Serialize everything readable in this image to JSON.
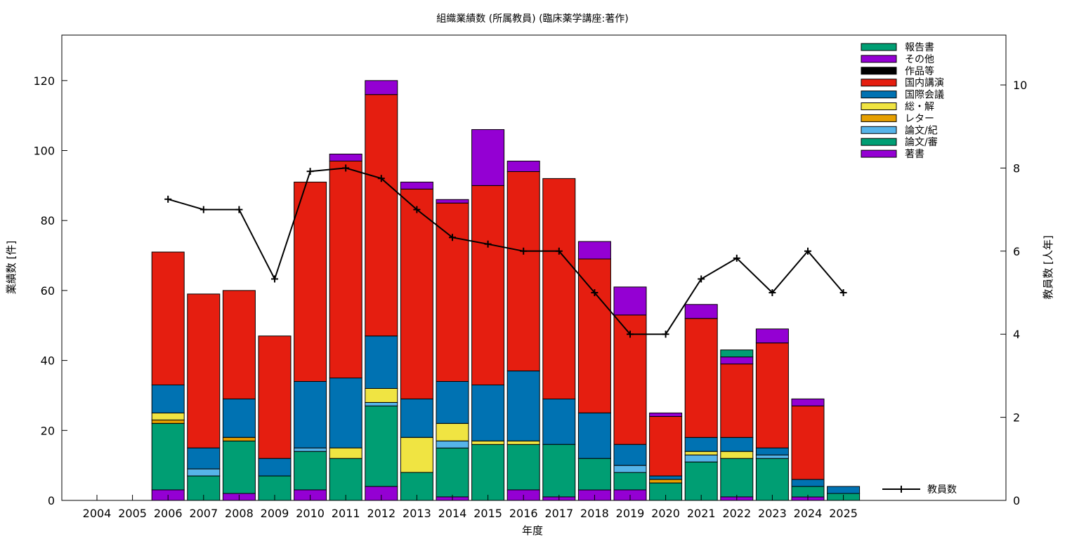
{
  "chart_data": {
    "type": "bar",
    "stacked": true,
    "title": "組織業績数 (所属教員) (臨床薬学講座:著作)",
    "xlabel": "年度",
    "ylabel": "業績数 [件]",
    "y2label": "教員数 [人年]",
    "ylim": [
      0,
      133
    ],
    "y2lim": [
      0,
      11.2
    ],
    "yticks": [
      0,
      20,
      40,
      60,
      80,
      100,
      120
    ],
    "y2ticks": [
      0,
      2,
      4,
      6,
      8,
      10
    ],
    "grid": false,
    "legend_position": "top-right",
    "categories": [
      "2004",
      "2005",
      "2006",
      "2007",
      "2008",
      "2009",
      "2010",
      "2011",
      "2012",
      "2013",
      "2014",
      "2015",
      "2016",
      "2017",
      "2018",
      "2019",
      "2020",
      "2021",
      "2022",
      "2023",
      "2024",
      "2025"
    ],
    "series": [
      {
        "name": "著書",
        "color": "#9400d3",
        "values": [
          0,
          0,
          3,
          0,
          2,
          0,
          3,
          0,
          4,
          0,
          1,
          0,
          3,
          1,
          3,
          3,
          0,
          0,
          1,
          0,
          1,
          0
        ]
      },
      {
        "name": "論文/審",
        "color": "#009e73",
        "values": [
          0,
          0,
          19,
          7,
          15,
          7,
          11,
          12,
          23,
          8,
          14,
          16,
          13,
          15,
          9,
          5,
          5,
          11,
          11,
          12,
          3,
          2
        ]
      },
      {
        "name": "論文/紀",
        "color": "#56b4e9",
        "values": [
          0,
          0,
          0,
          2,
          0,
          0,
          1,
          0,
          1,
          0,
          2,
          0,
          0,
          0,
          0,
          2,
          0,
          2,
          0,
          1,
          0,
          0
        ]
      },
      {
        "name": "レター",
        "color": "#e69f00",
        "values": [
          0,
          0,
          1,
          0,
          1,
          0,
          0,
          0,
          0,
          0,
          0,
          0,
          0,
          0,
          0,
          0,
          1,
          0,
          0,
          0,
          0,
          0
        ]
      },
      {
        "name": "総・解",
        "color": "#f0e442",
        "values": [
          0,
          0,
          2,
          0,
          0,
          0,
          0,
          3,
          4,
          10,
          5,
          1,
          1,
          0,
          0,
          0,
          0,
          1,
          2,
          0,
          0,
          0
        ]
      },
      {
        "name": "国際会議",
        "color": "#0072b2",
        "values": [
          0,
          0,
          8,
          6,
          11,
          5,
          19,
          20,
          15,
          11,
          12,
          16,
          20,
          13,
          13,
          6,
          1,
          4,
          4,
          2,
          2,
          2
        ]
      },
      {
        "name": "国内講演",
        "color": "#e51e10",
        "values": [
          0,
          0,
          38,
          44,
          31,
          35,
          57,
          62,
          69,
          60,
          51,
          57,
          57,
          63,
          44,
          37,
          17,
          34,
          21,
          30,
          21,
          0
        ]
      },
      {
        "name": "作品等",
        "color": "#000000",
        "values": [
          0,
          0,
          0,
          0,
          0,
          0,
          0,
          0,
          0,
          0,
          0,
          0,
          0,
          0,
          0,
          0,
          0,
          0,
          0,
          0,
          0,
          0
        ]
      },
      {
        "name": "その他",
        "color": "#9400d3",
        "values": [
          0,
          0,
          0,
          0,
          0,
          0,
          0,
          2,
          4,
          2,
          1,
          16,
          3,
          0,
          5,
          8,
          1,
          4,
          2,
          4,
          2,
          0
        ]
      },
      {
        "name": "報告書",
        "color": "#009e73",
        "values": [
          0,
          0,
          0,
          0,
          0,
          0,
          0,
          0,
          0,
          0,
          0,
          0,
          0,
          0,
          0,
          0,
          0,
          0,
          2,
          0,
          0,
          0
        ]
      }
    ],
    "line_series": {
      "name": "教員数",
      "color": "#000000",
      "axis": "y2",
      "x": [
        "2006",
        "2007",
        "2008",
        "2009",
        "2010",
        "2011",
        "2012",
        "2013",
        "2014",
        "2015",
        "2016",
        "2017",
        "2018",
        "2019",
        "2020",
        "2021",
        "2022",
        "2023",
        "2024",
        "2025"
      ],
      "values": [
        7.25,
        7.0,
        7.0,
        5.33,
        7.92,
        8.0,
        7.75,
        7.0,
        6.33,
        6.17,
        6.0,
        6.0,
        5.0,
        4.0,
        4.0,
        5.33,
        5.83,
        5.0,
        6.0,
        5.0
      ]
    },
    "legend_order": [
      "報告書",
      "その他",
      "作品等",
      "国内講演",
      "国際会議",
      "総・解",
      "レター",
      "論文/紀",
      "論文/審",
      "著書"
    ]
  }
}
